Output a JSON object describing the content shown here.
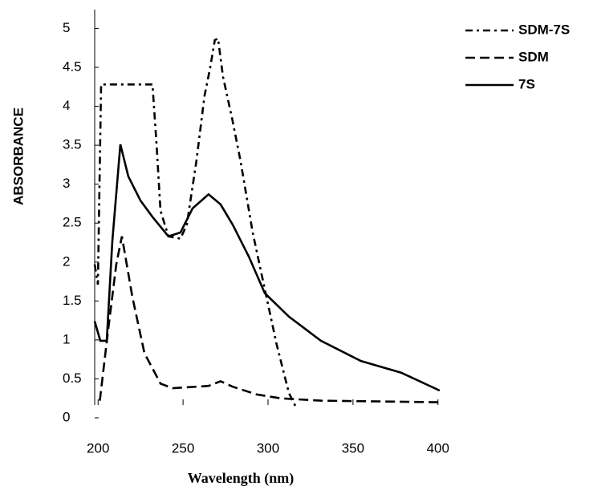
{
  "chart_data": {
    "type": "line",
    "x_label": "Wavelength (nm)",
    "y_label": "ABSORBANCE",
    "xlim": [
      198,
      402
    ],
    "ylim": [
      0,
      5.2
    ],
    "xticks": [
      200,
      250,
      300,
      350,
      400
    ],
    "yticks": [
      0,
      0.5,
      1,
      1.5,
      2,
      2.5,
      3,
      3.5,
      4,
      4.5,
      5
    ],
    "series": [
      {
        "name": "SDM-7S",
        "color": "#000000",
        "dash": "9,5,3,5",
        "x": [
          198,
          199.9,
          201.8,
          232,
          234.4,
          236.7,
          241.4,
          248.5,
          252.2,
          257.9,
          262.6,
          265.9,
          268.7,
          270.6,
          273.5,
          279.1,
          283.8,
          291,
          298,
          305.1,
          312.3,
          317
        ],
        "values": [
          1.97,
          1.71,
          4.28,
          4.28,
          3.51,
          2.66,
          2.33,
          2.3,
          2.48,
          3.3,
          4.13,
          4.49,
          4.85,
          4.87,
          4.38,
          3.82,
          3.3,
          2.38,
          1.66,
          0.94,
          0.32,
          0.11
        ]
      },
      {
        "name": "SDM",
        "color": "#000000",
        "dash": "12,6",
        "x": [
          201,
          206,
          210.7,
          214,
          220.2,
          227.3,
          236.7,
          243.8,
          265,
          272.1,
          279.2,
          293.4,
          307.5,
          331.1,
          401
        ],
        "values": [
          0.22,
          1.14,
          1.97,
          2.33,
          1.55,
          0.83,
          0.44,
          0.38,
          0.41,
          0.47,
          0.4,
          0.3,
          0.25,
          0.22,
          0.2
        ]
      },
      {
        "name": "7S",
        "color": "#000000",
        "dash": null,
        "x": [
          198,
          201.3,
          205.1,
          208.4,
          213.1,
          217.8,
          224.9,
          232,
          241.4,
          248.5,
          255.6,
          265,
          272.1,
          279.2,
          288.7,
          298.1,
          312.3,
          331.1,
          354.7,
          378.4,
          401
        ],
        "values": [
          1.24,
          0.99,
          0.99,
          2.27,
          3.51,
          3.1,
          2.79,
          2.58,
          2.33,
          2.38,
          2.69,
          2.87,
          2.74,
          2.48,
          2.07,
          1.6,
          1.3,
          0.99,
          0.73,
          0.58,
          0.35
        ]
      }
    ]
  }
}
